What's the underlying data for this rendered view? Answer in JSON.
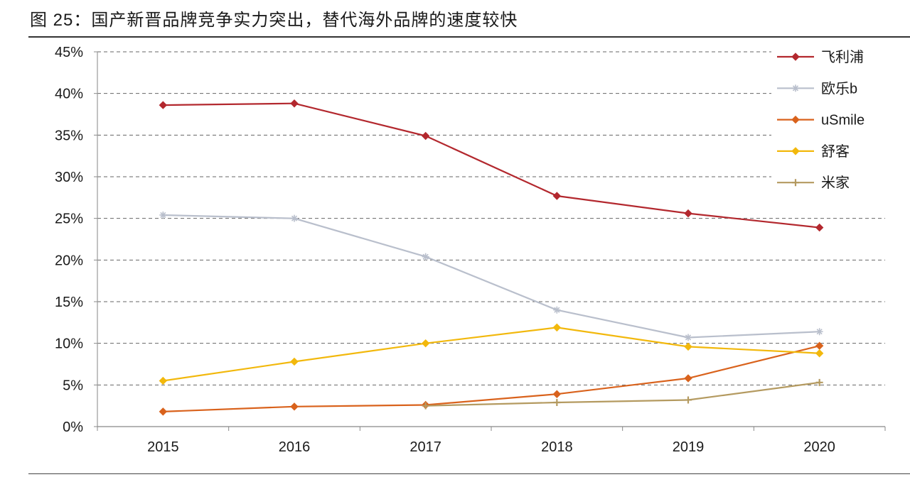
{
  "chart_data": {
    "type": "line",
    "title": "图 25：国产新晋品牌竞争实力突出，替代海外品牌的速度较快",
    "categories": [
      "2015",
      "2016",
      "2017",
      "2018",
      "2019",
      "2020"
    ],
    "ylim": [
      0,
      45
    ],
    "yticks": [
      0,
      5,
      10,
      15,
      20,
      25,
      30,
      35,
      40,
      45
    ],
    "ytick_labels": [
      "0%",
      "5%",
      "10%",
      "15%",
      "20%",
      "25%",
      "30%",
      "35%",
      "40%",
      "45%"
    ],
    "grid": true,
    "legend_position": "top-right",
    "series": [
      {
        "name": "飞利浦",
        "color": "#b3282e",
        "marker": "diamond",
        "values": [
          38.6,
          38.8,
          34.9,
          27.7,
          25.6,
          23.9
        ]
      },
      {
        "name": "欧乐b",
        "color": "#b9bfcc",
        "marker": "star",
        "values": [
          25.4,
          25.0,
          20.4,
          14.0,
          10.7,
          11.4
        ]
      },
      {
        "name": "uSmile",
        "color": "#d9621c",
        "marker": "diamond",
        "values": [
          1.8,
          2.4,
          2.6,
          3.9,
          5.8,
          9.7
        ]
      },
      {
        "name": "舒客",
        "color": "#f2b80c",
        "marker": "diamond",
        "values": [
          5.5,
          7.8,
          10.0,
          11.9,
          9.6,
          8.8
        ]
      },
      {
        "name": "米家",
        "color": "#b49a60",
        "marker": "cross",
        "values": [
          null,
          null,
          2.5,
          2.9,
          3.2,
          5.3
        ]
      }
    ]
  }
}
